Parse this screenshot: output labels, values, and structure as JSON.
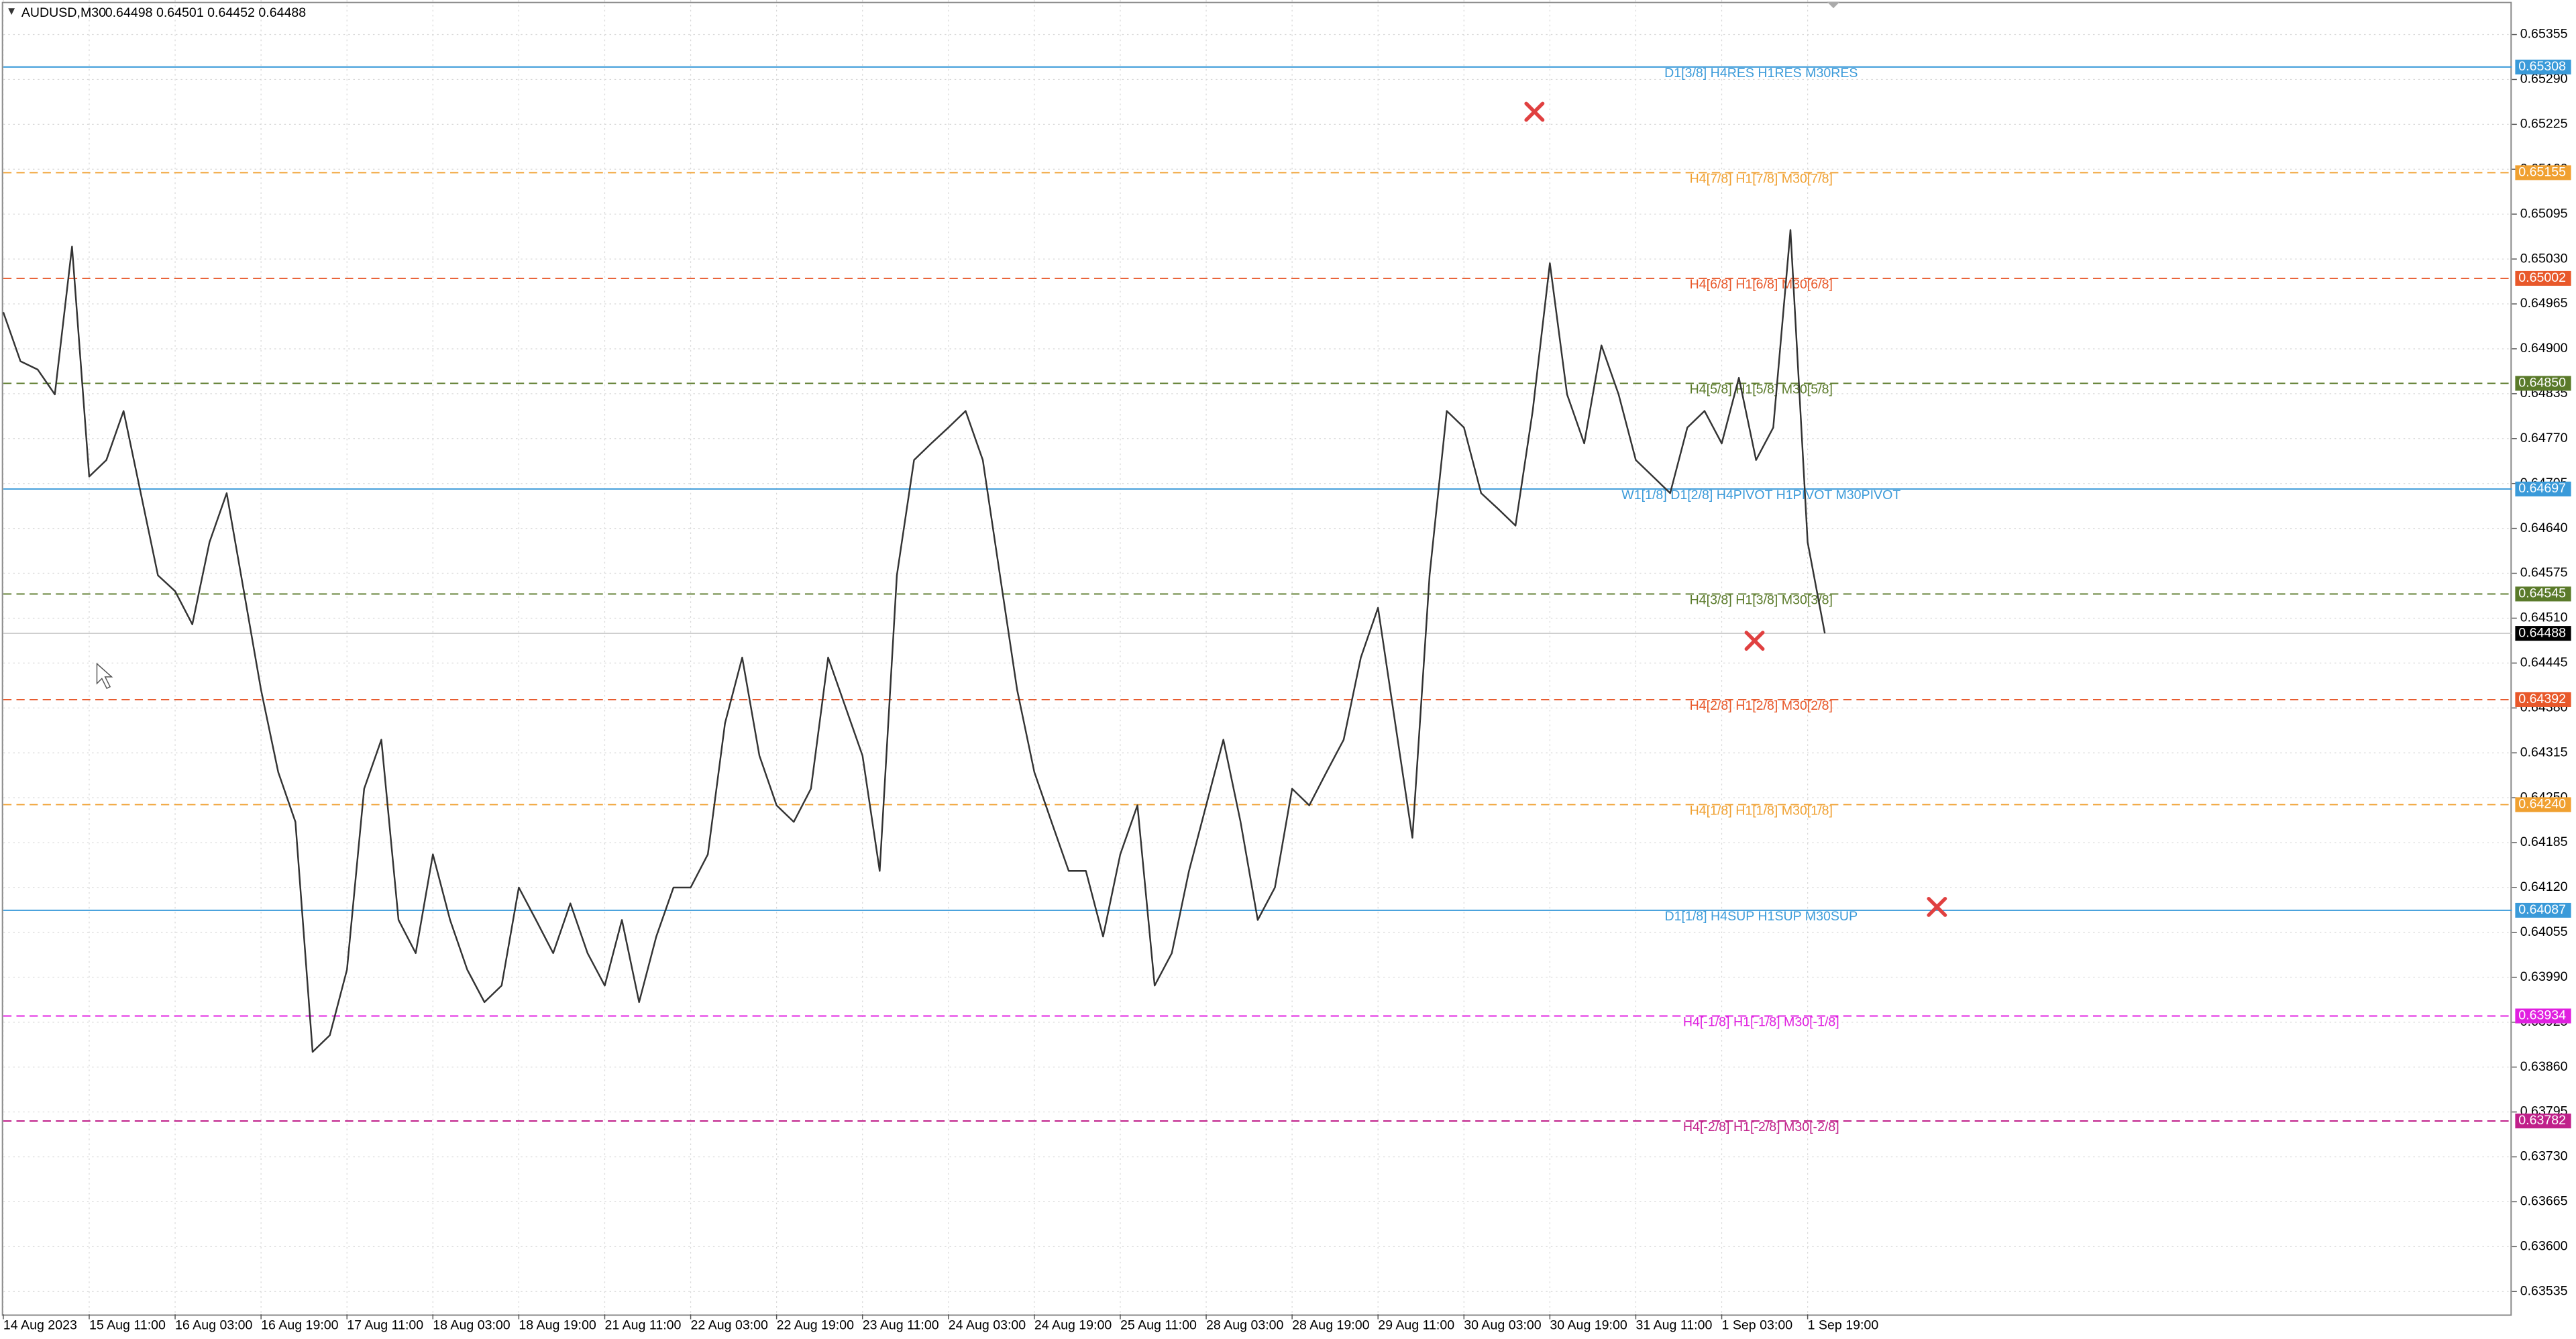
{
  "chart_data": {
    "type": "line",
    "title": "AUDUSD,M30",
    "ohlc_text": "0.64498 0.64501 0.64452 0.64488",
    "ylim": [
      0.63502,
      0.65405
    ],
    "yticks": [
      {
        "value": 0.65355,
        "label": "0.65355"
      },
      {
        "value": 0.6529,
        "label": "0.65290"
      },
      {
        "value": 0.65225,
        "label": "0.65225"
      },
      {
        "value": 0.6516,
        "label": "0.65160"
      },
      {
        "value": 0.65095,
        "label": "0.65095"
      },
      {
        "value": 0.6503,
        "label": "0.65030"
      },
      {
        "value": 0.64965,
        "label": "0.64965"
      },
      {
        "value": 0.649,
        "label": "0.64900"
      },
      {
        "value": 0.64835,
        "label": "0.64835"
      },
      {
        "value": 0.6477,
        "label": "0.64770"
      },
      {
        "value": 0.64705,
        "label": "0.64705"
      },
      {
        "value": 0.6464,
        "label": "0.64640"
      },
      {
        "value": 0.64575,
        "label": "0.64575"
      },
      {
        "value": 0.6451,
        "label": "0.64510"
      },
      {
        "value": 0.64445,
        "label": "0.64445"
      },
      {
        "value": 0.6438,
        "label": "0.64380"
      },
      {
        "value": 0.64315,
        "label": "0.64315"
      },
      {
        "value": 0.6425,
        "label": "0.64250"
      },
      {
        "value": 0.64185,
        "label": "0.64185"
      },
      {
        "value": 0.6412,
        "label": "0.64120"
      },
      {
        "value": 0.64055,
        "label": "0.64055"
      },
      {
        "value": 0.6399,
        "label": "0.63990"
      },
      {
        "value": 0.63925,
        "label": "0.63925"
      },
      {
        "value": 0.6386,
        "label": "0.63860"
      },
      {
        "value": 0.63795,
        "label": "0.63795"
      },
      {
        "value": 0.6373,
        "label": "0.63730"
      },
      {
        "value": 0.63665,
        "label": "0.63665"
      },
      {
        "value": 0.636,
        "label": "0.63600"
      },
      {
        "value": 0.63535,
        "label": "0.63535"
      }
    ],
    "categories": [
      "14 Aug 2023",
      null,
      null,
      null,
      null,
      "15 Aug 11:00",
      null,
      null,
      null,
      null,
      "16 Aug 03:00",
      null,
      null,
      null,
      null,
      "16 Aug 19:00",
      null,
      null,
      null,
      null,
      "17 Aug 11:00",
      null,
      null,
      null,
      null,
      "18 Aug 03:00",
      null,
      null,
      null,
      null,
      "18 Aug 19:00",
      null,
      null,
      null,
      null,
      "21 Aug 11:00",
      null,
      null,
      null,
      null,
      "22 Aug 03:00",
      null,
      null,
      null,
      null,
      "22 Aug 19:00",
      null,
      null,
      null,
      null,
      "23 Aug 11:00",
      null,
      null,
      null,
      null,
      "24 Aug 03:00",
      null,
      null,
      null,
      null,
      "24 Aug 19:00",
      null,
      null,
      null,
      null,
      "25 Aug 11:00",
      null,
      null,
      null,
      null,
      "28 Aug 03:00",
      null,
      null,
      null,
      null,
      "28 Aug 19:00",
      null,
      null,
      null,
      null,
      "29 Aug 11:00",
      null,
      null,
      null,
      null,
      "30 Aug 03:00",
      null,
      null,
      null,
      null,
      "30 Aug 19:00",
      null,
      null,
      null,
      null,
      "31 Aug 11:00",
      null,
      null,
      null,
      null,
      "1 Sep 03:00",
      null,
      null,
      null,
      null,
      "1 Sep 19:00",
      null
    ],
    "series": [
      {
        "color": "#333333",
        "values": [
          0.64953,
          0.64882,
          0.6487,
          0.64834,
          0.65048,
          0.64715,
          0.64739,
          0.6481,
          0.64691,
          0.64572,
          0.64549,
          0.64501,
          0.6462,
          0.64691,
          0.64549,
          0.64406,
          0.64287,
          0.64215,
          0.63882,
          0.63906,
          0.64001,
          0.64263,
          0.64334,
          0.64073,
          0.64025,
          0.64168,
          0.64073,
          0.64001,
          0.63954,
          0.63978,
          0.6412,
          0.64073,
          0.64025,
          0.64097,
          0.64025,
          0.63978,
          0.64073,
          0.63954,
          0.64049,
          0.6412,
          0.6412,
          0.64168,
          0.64358,
          0.64453,
          0.64311,
          0.64239,
          0.64215,
          0.64263,
          0.64453,
          0.64382,
          0.64311,
          0.64144,
          0.64572,
          0.64739,
          0.64763,
          0.64786,
          0.6481,
          0.64739,
          0.64572,
          0.64406,
          0.64287,
          0.64215,
          0.64144,
          0.64144,
          0.64049,
          0.64168,
          0.64239,
          0.63978,
          0.64025,
          0.64144,
          0.64239,
          0.64334,
          0.64215,
          0.64073,
          0.6412,
          0.64263,
          0.64239,
          0.64287,
          0.64334,
          0.64453,
          0.64525,
          0.64358,
          0.64192,
          0.64572,
          0.6481,
          0.64786,
          0.64691,
          0.64668,
          0.64644,
          0.6481,
          0.65024,
          0.64834,
          0.64763,
          0.64905,
          0.64834,
          0.64739,
          0.64715,
          0.64691,
          0.64786,
          0.6481,
          0.64763,
          0.64858,
          0.64739,
          0.64786,
          0.65072,
          0.6462,
          0.64488
        ]
      }
    ],
    "levels": [
      {
        "name": "D1[3/8] H4RES H1RES M30RES",
        "value": 0.65308,
        "label": "0.65308",
        "color": "#3a9ad9",
        "dashed": false
      },
      {
        "name": "H4[7/8] H1[7/8] M30[7/8]",
        "value": 0.65155,
        "label": "0.65155",
        "color": "#f0a030",
        "dashed": true
      },
      {
        "name": "H4[6/8] H1[6/8] M30[6/8]",
        "value": 0.65002,
        "label": "0.65002",
        "color": "#e8582a",
        "dashed": true
      },
      {
        "name": "H4[5/8] H1[5/8] M30[5/8]",
        "value": 0.6485,
        "label": "0.64850",
        "color": "#5a7a2a",
        "dashed": true
      },
      {
        "name": "W1[1/8] D1[2/8] H4PIVOT H1PIVOT M30PIVOT",
        "value": 0.64697,
        "label": "0.64697",
        "color": "#3a9ad9",
        "dashed": false
      },
      {
        "name": "H4[3/8] H1[3/8] M30[3/8]",
        "value": 0.64545,
        "label": "0.64545",
        "color": "#5a7a2a",
        "dashed": true
      },
      {
        "name": "H4[2/8] H1[2/8] M30[2/8]",
        "value": 0.64392,
        "label": "0.64392",
        "color": "#e8582a",
        "dashed": true
      },
      {
        "name": "H4[1/8] H1[1/8] M30[1/8]",
        "value": 0.6424,
        "label": "0.64240",
        "color": "#f0a030",
        "dashed": true
      },
      {
        "name": "D1[1/8] H4SUP H1SUP M30SUP",
        "value": 0.64087,
        "label": "0.64087",
        "color": "#3a9ad9",
        "dashed": false
      },
      {
        "name": "H4[-1/8] H1[-1/8] M30[-1/8]",
        "value": 0.63934,
        "label": "0.63934",
        "color": "#e020e0",
        "dashed": true
      },
      {
        "name": "H4[-2/8] H1[-2/8] M30[-2/8]",
        "value": 0.63782,
        "label": "0.63782",
        "color": "#c0208a",
        "dashed": true
      }
    ],
    "current_price": {
      "value": 0.64488,
      "label": "0.64488",
      "color": "#000000"
    }
  }
}
